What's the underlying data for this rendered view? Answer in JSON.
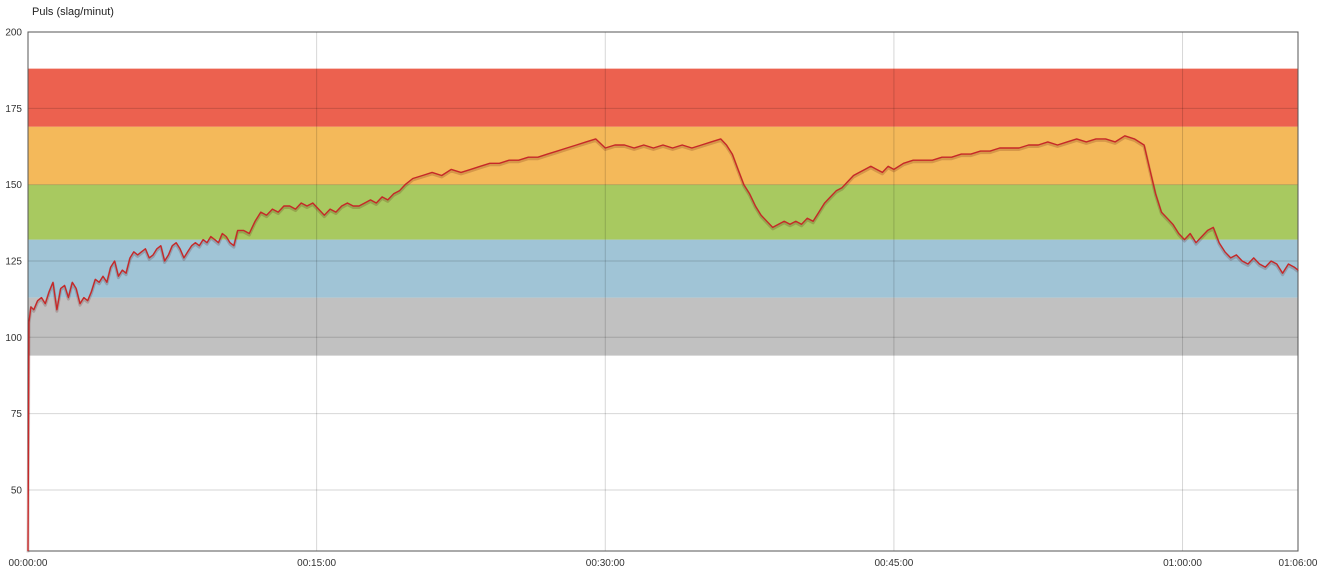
{
  "chart_data": {
    "type": "line",
    "title": "Puls (slag/minut)",
    "xlabel": "",
    "ylabel": "",
    "xlim": [
      0,
      66
    ],
    "ylim": [
      30,
      200
    ],
    "grid": true,
    "y_ticks": [
      {
        "value": 50,
        "label": "50"
      },
      {
        "value": 75,
        "label": "75"
      },
      {
        "value": 100,
        "label": "100"
      },
      {
        "value": 125,
        "label": "125"
      },
      {
        "value": 150,
        "label": "150"
      },
      {
        "value": 175,
        "label": "175"
      },
      {
        "value": 200,
        "label": "200"
      }
    ],
    "x_ticks": [
      {
        "value": 0,
        "label": "00:00:00"
      },
      {
        "value": 15,
        "label": "00:15:00"
      },
      {
        "value": 30,
        "label": "00:30:00"
      },
      {
        "value": 45,
        "label": "00:45:00"
      },
      {
        "value": 60,
        "label": "01:00:00"
      },
      {
        "value": 66,
        "label": "01:06:00"
      }
    ],
    "zones": [
      {
        "from": 94,
        "to": 113,
        "color": "#c1c1c1"
      },
      {
        "from": 113,
        "to": 132,
        "color": "#a0c4d6"
      },
      {
        "from": 132,
        "to": 150,
        "color": "#a8c960"
      },
      {
        "from": 150,
        "to": 169,
        "color": "#f4b95a"
      },
      {
        "from": 169,
        "to": 188,
        "color": "#ec614f"
      }
    ],
    "series": [
      {
        "color": "#c62828",
        "x": [
          0,
          0.05,
          0.15,
          0.3,
          0.5,
          0.7,
          0.9,
          1.1,
          1.3,
          1.5,
          1.7,
          1.9,
          2.1,
          2.3,
          2.5,
          2.7,
          2.9,
          3.1,
          3.3,
          3.5,
          3.7,
          3.9,
          4.1,
          4.3,
          4.5,
          4.7,
          4.9,
          5.1,
          5.3,
          5.5,
          5.7,
          5.9,
          6.1,
          6.3,
          6.5,
          6.7,
          6.9,
          7.1,
          7.3,
          7.5,
          7.7,
          7.9,
          8.1,
          8.3,
          8.5,
          8.7,
          8.9,
          9.1,
          9.3,
          9.5,
          9.7,
          9.9,
          10.1,
          10.3,
          10.5,
          10.7,
          10.9,
          11.2,
          11.5,
          11.8,
          12.1,
          12.4,
          12.7,
          13.0,
          13.3,
          13.6,
          13.9,
          14.2,
          14.5,
          14.8,
          15.1,
          15.4,
          15.7,
          16.0,
          16.3,
          16.6,
          16.9,
          17.2,
          17.5,
          17.8,
          18.1,
          18.4,
          18.7,
          19.0,
          19.3,
          19.6,
          20.0,
          20.5,
          21.0,
          21.5,
          22.0,
          22.5,
          23.0,
          23.5,
          24.0,
          24.5,
          25.0,
          25.5,
          26.0,
          26.5,
          27.0,
          27.5,
          28.0,
          28.5,
          29.0,
          29.5,
          30.0,
          30.5,
          31.0,
          31.5,
          32.0,
          32.5,
          33.0,
          33.5,
          34.0,
          34.5,
          35.0,
          35.5,
          36.0,
          36.3,
          36.6,
          36.9,
          37.2,
          37.5,
          37.8,
          38.1,
          38.4,
          38.7,
          39.0,
          39.3,
          39.6,
          39.9,
          40.2,
          40.5,
          40.8,
          41.1,
          41.4,
          41.7,
          42.0,
          42.3,
          42.6,
          42.9,
          43.2,
          43.5,
          43.8,
          44.1,
          44.4,
          44.7,
          45.0,
          45.5,
          46.0,
          46.5,
          47.0,
          47.5,
          48.0,
          48.5,
          49.0,
          49.5,
          50.0,
          50.5,
          51.0,
          51.5,
          52.0,
          52.5,
          53.0,
          53.5,
          54.0,
          54.5,
          55.0,
          55.5,
          56.0,
          56.5,
          57.0,
          57.5,
          58.0,
          58.3,
          58.6,
          58.9,
          59.2,
          59.5,
          59.8,
          60.1,
          60.4,
          60.7,
          61.0,
          61.3,
          61.6,
          61.9,
          62.2,
          62.5,
          62.8,
          63.1,
          63.4,
          63.7,
          64.0,
          64.3,
          64.6,
          64.9,
          65.2,
          65.5,
          65.8,
          66.0
        ],
        "y": [
          30,
          105,
          110,
          109,
          112,
          113,
          111,
          115,
          118,
          109,
          116,
          117,
          113,
          118,
          116,
          111,
          113,
          112,
          115,
          119,
          118,
          120,
          118,
          123,
          125,
          120,
          122,
          121,
          126,
          128,
          127,
          128,
          129,
          126,
          127,
          129,
          130,
          125,
          127,
          130,
          131,
          129,
          126,
          128,
          130,
          131,
          130,
          132,
          131,
          133,
          132,
          131,
          134,
          133,
          131,
          130,
          135,
          135,
          134,
          138,
          141,
          140,
          142,
          141,
          143,
          143,
          142,
          144,
          143,
          144,
          142,
          140,
          142,
          141,
          143,
          144,
          143,
          143,
          144,
          145,
          144,
          146,
          145,
          147,
          148,
          150,
          152,
          153,
          154,
          153,
          155,
          154,
          155,
          156,
          157,
          157,
          158,
          158,
          159,
          159,
          160,
          161,
          162,
          163,
          164,
          165,
          162,
          163,
          163,
          162,
          163,
          162,
          163,
          162,
          163,
          162,
          163,
          164,
          165,
          163,
          160,
          155,
          150,
          147,
          143,
          140,
          138,
          136,
          137,
          138,
          137,
          138,
          137,
          139,
          138,
          141,
          144,
          146,
          148,
          149,
          151,
          153,
          154,
          155,
          156,
          155,
          154,
          156,
          155,
          157,
          158,
          158,
          158,
          159,
          159,
          160,
          160,
          161,
          161,
          162,
          162,
          162,
          163,
          163,
          164,
          163,
          164,
          165,
          164,
          165,
          165,
          164,
          166,
          165,
          163,
          155,
          147,
          141,
          139,
          137,
          134,
          132,
          134,
          131,
          133,
          135,
          136,
          131,
          128,
          126,
          127,
          125,
          124,
          126,
          124,
          123,
          125,
          124,
          121,
          124,
          123,
          122
        ]
      }
    ]
  }
}
